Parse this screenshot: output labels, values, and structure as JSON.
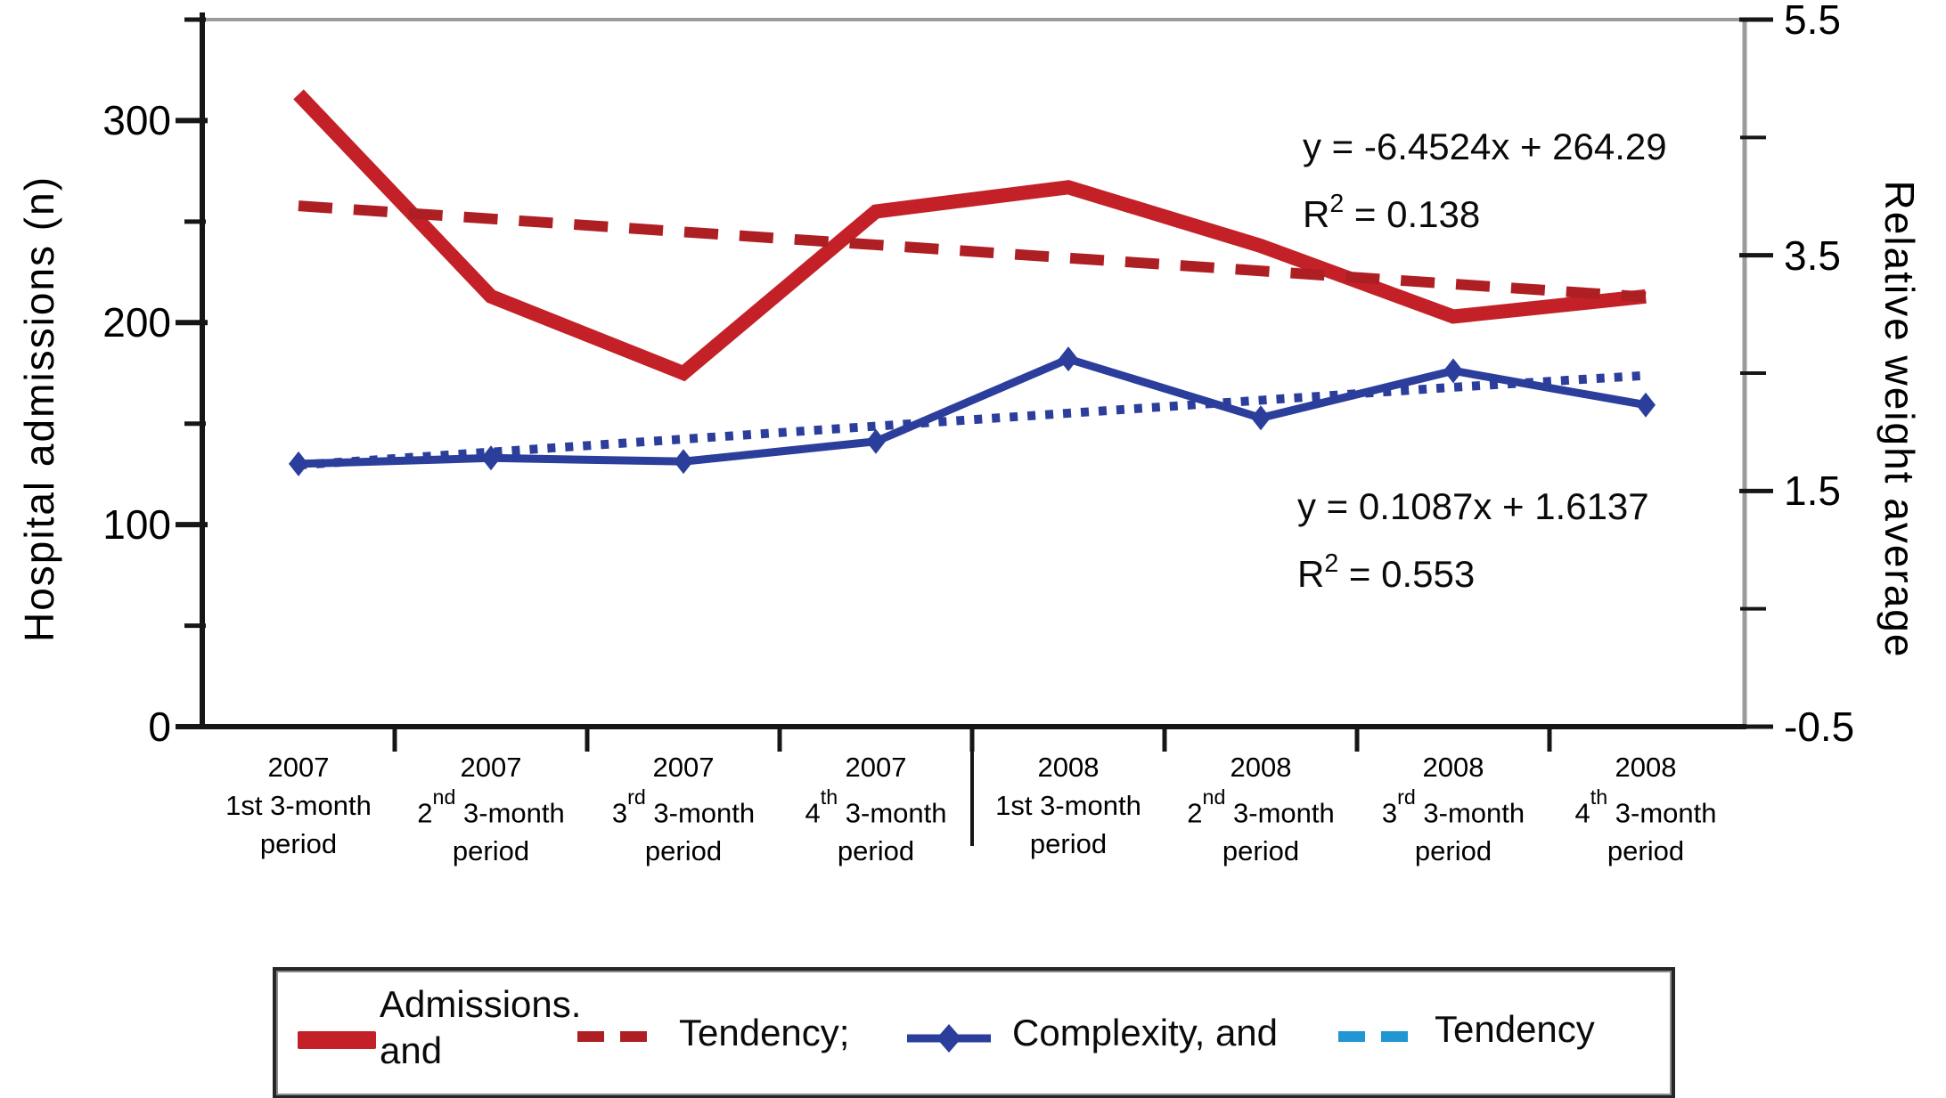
{
  "chart_data": {
    "type": "line",
    "title": "",
    "categories": [
      {
        "year": "2007",
        "pre": "1st",
        "sup": "",
        "post": " 3-month",
        "line3": "period"
      },
      {
        "year": "2007",
        "pre": "2",
        "sup": "nd",
        "post": " 3-month",
        "line3": "period"
      },
      {
        "year": "2007",
        "pre": "3",
        "sup": "rd",
        "post": " 3-month",
        "line3": "period"
      },
      {
        "year": "2007",
        "pre": "4",
        "sup": "th",
        "post": " 3-month",
        "line3": "period"
      },
      {
        "year": "2008",
        "pre": "1st",
        "sup": "",
        "post": " 3-month",
        "line3": "period"
      },
      {
        "year": "2008",
        "pre": "2",
        "sup": "nd",
        "post": " 3-month",
        "line3": "period"
      },
      {
        "year": "2008",
        "pre": "3",
        "sup": "rd",
        "post": " 3-month",
        "line3": "period"
      },
      {
        "year": "2008",
        "pre": "4",
        "sup": "th",
        "post": " 3-month",
        "line3": "period"
      }
    ],
    "series": [
      {
        "name": "Admissions",
        "axis": "left",
        "style": "solid-thick",
        "color": "#c32127",
        "values": [
          313,
          213,
          175,
          255,
          267,
          238,
          203,
          213
        ]
      },
      {
        "name": "Admissions tendency",
        "axis": "left",
        "style": "dashed",
        "color": "#ae1f24",
        "values": [
          257.8,
          251.4,
          244.9,
          238.5,
          232.0,
          225.6,
          219.1,
          212.7
        ]
      },
      {
        "name": "Complexity",
        "axis": "right",
        "style": "solid-marker",
        "color": "#2c3e9b",
        "values": [
          1.73,
          1.78,
          1.75,
          1.92,
          2.62,
          2.12,
          2.52,
          2.23
        ]
      },
      {
        "name": "Complexity tendency",
        "axis": "right",
        "style": "dotted",
        "color": "#2c3e9b",
        "values": [
          1.72,
          1.83,
          1.94,
          2.05,
          2.16,
          2.27,
          2.38,
          2.48
        ]
      }
    ],
    "left_axis": {
      "label": "Hospital admissions (n)",
      "range": [
        0,
        350
      ],
      "major_ticks": [
        {
          "v": 0,
          "label": "0"
        },
        {
          "v": 100,
          "label": "100"
        },
        {
          "v": 200,
          "label": "200"
        },
        {
          "v": 300,
          "label": "300"
        }
      ],
      "minor_ticks": [
        50,
        150,
        250,
        350
      ]
    },
    "right_axis": {
      "label": "Relative weight average",
      "range": [
        -0.5,
        5.5
      ],
      "major_ticks": [
        {
          "v": -0.5,
          "label": "-0.5"
        },
        {
          "v": 1.5,
          "label": "1.5"
        },
        {
          "v": 3.5,
          "label": "3.5"
        },
        {
          "v": 5.5,
          "label": "5.5"
        }
      ],
      "minor_ticks": [
        0.5,
        2.5,
        4.5
      ]
    },
    "annotations": [
      {
        "eq": "y = -6.4524x + 264.29",
        "r2_base": "R",
        "r2_exp": "2",
        "r2_rest": " = 0.138"
      },
      {
        "eq": "y = 0.1087x + 1.6137",
        "r2_base": "R",
        "r2_exp": "2",
        "r2_rest": " = 0.553"
      }
    ],
    "legend": [
      {
        "swatch": "red-solid",
        "color": "#c32127",
        "label": "Admissions.\nand"
      },
      {
        "swatch": "red-dash",
        "color": "#ae1f24",
        "label": "Tendency;"
      },
      {
        "swatch": "blue-marker",
        "color": "#2c3e9b",
        "label": "Complexity, and"
      },
      {
        "swatch": "cyan-dash",
        "color": "#2096d3",
        "label": "Tendency"
      }
    ],
    "grid": false,
    "legend_position": "bottom"
  },
  "frame_colors": {
    "axis_black": "#161616",
    "axis_gray": "#9b9b9b"
  }
}
